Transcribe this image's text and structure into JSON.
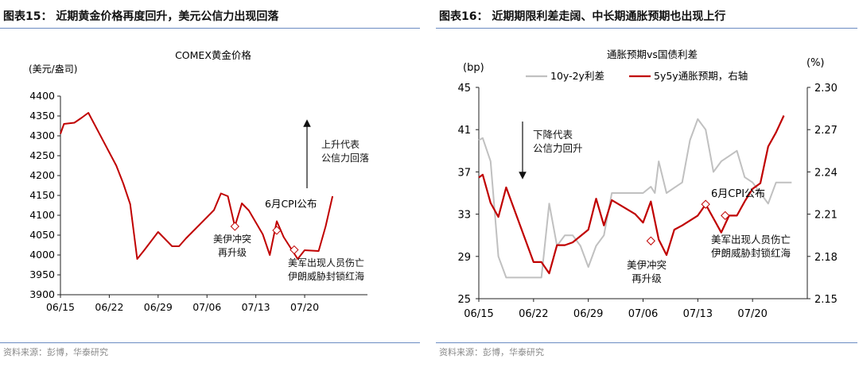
{
  "left": {
    "title": "图表15：  近期黄金价格再度回升，美元公信力出现回落",
    "source": "资料来源：彭博，华泰研究",
    "chart_data": {
      "type": "line",
      "title": "COMEX黄金价格",
      "ylabel": "(美元/盎司)",
      "ylim": [
        3900,
        4400
      ],
      "yticks": [
        3900,
        3950,
        4000,
        4050,
        4100,
        4150,
        4200,
        4250,
        4300,
        4350,
        4400
      ],
      "xlabels": [
        "06/15",
        "06/22",
        "06/29",
        "07/06",
        "07/13",
        "07/20"
      ],
      "xlabel_days": [
        0,
        7,
        14,
        21,
        28,
        35
      ],
      "xlim": [
        0,
        44
      ],
      "grid": false,
      "series": [
        {
          "color": "#c00000",
          "x": [
            0,
            0.5,
            2,
            3,
            4,
            8,
            9,
            10,
            11,
            12,
            14,
            16,
            17,
            18,
            22,
            23,
            24,
            25,
            26,
            27,
            29,
            30,
            31,
            32,
            34,
            35,
            36,
            37,
            38,
            39
          ],
          "y": [
            4305,
            4330,
            4333,
            4345,
            4358,
            4225,
            4180,
            4128,
            3990,
            4012,
            4058,
            4022,
            4022,
            4042,
            4113,
            4155,
            4148,
            4072,
            4130,
            4112,
            4052,
            4000,
            4085,
            4045,
            3990,
            4012,
            4011,
            4010,
            4072,
            4148
          ]
        }
      ],
      "markers": [
        {
          "x": 25,
          "y": 4072
        },
        {
          "x": 31,
          "y": 4062
        },
        {
          "x": 33.5,
          "y": 4013
        }
      ],
      "annotations": [
        {
          "text": "上升代表\n公信力回落",
          "arrow": "up"
        },
        {
          "text": "6月CPI公布"
        },
        {
          "text": "美伊冲突\n再升级"
        },
        {
          "text": "美军出现人员伤亡\n伊朗威胁封锁红海"
        }
      ]
    }
  },
  "right": {
    "title": "图表16：  近期期限利差走阔、中长期通胀预期也出现上行",
    "source": "资料来源：彭博，华泰研究",
    "chart_data": {
      "type": "line",
      "title": "通胀预期vs国债利差",
      "y_left_unit": "(bp)",
      "y_right_unit": "(%)",
      "ylim_left": [
        25,
        45
      ],
      "yticks_left": [
        25,
        29,
        33,
        37,
        41,
        45
      ],
      "ylim_right": [
        2.15,
        2.3
      ],
      "yticks_right": [
        "2.15",
        "2.18",
        "2.21",
        "2.24",
        "2.27",
        "2.30"
      ],
      "xlabels": [
        "06/15",
        "06/22",
        "06/29",
        "07/06",
        "07/13",
        "07/20"
      ],
      "xlabel_days": [
        0,
        7,
        14,
        21,
        28,
        35
      ],
      "xlim": [
        0,
        42
      ],
      "grid": false,
      "legend": "top",
      "series": [
        {
          "name": "10y-2y利差",
          "axis": "left",
          "color": "#c0c0c0",
          "x": [
            0,
            0.5,
            1.5,
            2.5,
            3.5,
            4.5,
            6,
            8,
            9,
            10,
            11,
            12,
            13,
            14,
            15,
            16,
            17,
            18,
            19,
            20,
            21,
            22,
            22.5,
            23,
            24,
            25,
            26,
            27,
            28,
            29,
            30,
            31,
            32,
            33,
            34,
            35,
            36,
            37,
            38,
            39,
            40
          ],
          "y": [
            40,
            40.2,
            38,
            29,
            27,
            27,
            27,
            27,
            34,
            30,
            31,
            31,
            30,
            28,
            30,
            31,
            35,
            35,
            35,
            35,
            35,
            35.6,
            35,
            38,
            35,
            35.5,
            36,
            40,
            42,
            41,
            37,
            38,
            38.5,
            39,
            36.5,
            36,
            35,
            34,
            36,
            36,
            36
          ]
        },
        {
          "name": "5y5y通胀预期，右轴",
          "axis": "right",
          "color": "#c00000",
          "x": [
            0,
            0.5,
            1.5,
            2.5,
            3.5,
            7,
            8,
            9,
            10,
            11,
            12,
            14,
            15,
            16,
            17,
            20,
            21,
            22,
            23,
            24,
            25,
            26,
            28,
            29,
            30,
            31,
            32,
            33,
            34,
            35,
            36,
            37,
            38,
            39
          ],
          "y": [
            2.236,
            2.238,
            2.218,
            2.208,
            2.229,
            2.176,
            2.176,
            2.168,
            2.188,
            2.188,
            2.19,
            2.199,
            2.221,
            2.202,
            2.22,
            2.21,
            2.204,
            2.219,
            2.192,
            2.181,
            2.199,
            2.202,
            2.209,
            2.217,
            2.207,
            2.197,
            2.209,
            2.209,
            2.219,
            2.228,
            2.232,
            2.258,
            2.268,
            2.28
          ]
        }
      ],
      "markers": [
        {
          "x": 22,
          "y": 2.191
        },
        {
          "x": 29,
          "y": 2.217
        },
        {
          "x": 31.5,
          "y": 2.209
        }
      ],
      "annotations": [
        {
          "text": "下降代表\n公信力回升",
          "arrow": "down"
        },
        {
          "text": "6月CPI公布"
        },
        {
          "text": "美伊冲突\n再升级"
        },
        {
          "text": "美军出现人员伤亡\n伊朗威胁封锁红海"
        }
      ]
    }
  }
}
